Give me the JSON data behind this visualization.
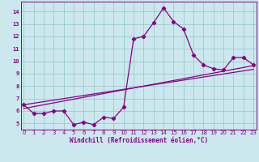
{
  "xlabel": "Windchill (Refroidissement éolien,°C)",
  "bg_color": "#cce8ee",
  "line_color": "#880088",
  "grid_color": "#99cccc",
  "x_data": [
    0,
    1,
    2,
    3,
    4,
    5,
    6,
    7,
    8,
    9,
    10,
    11,
    12,
    13,
    14,
    15,
    16,
    17,
    18,
    19,
    20,
    21,
    22,
    23
  ],
  "y_main": [
    6.5,
    5.8,
    5.8,
    6.0,
    6.0,
    4.9,
    5.1,
    4.9,
    5.5,
    5.4,
    6.3,
    11.8,
    12.0,
    13.1,
    14.3,
    13.2,
    12.6,
    10.5,
    9.7,
    9.4,
    9.3,
    10.3,
    10.3,
    9.7
  ],
  "trend1_x": [
    0,
    23
  ],
  "trend1_y": [
    6.5,
    9.35
  ],
  "trend2_x": [
    0,
    23
  ],
  "trend2_y": [
    6.2,
    9.65
  ],
  "ylim": [
    4.5,
    14.8
  ],
  "xlim": [
    -0.3,
    23.3
  ],
  "yticks": [
    5,
    6,
    7,
    8,
    9,
    10,
    11,
    12,
    13,
    14
  ],
  "xticks": [
    0,
    1,
    2,
    3,
    4,
    5,
    6,
    7,
    8,
    9,
    10,
    11,
    12,
    13,
    14,
    15,
    16,
    17,
    18,
    19,
    20,
    21,
    22,
    23
  ]
}
